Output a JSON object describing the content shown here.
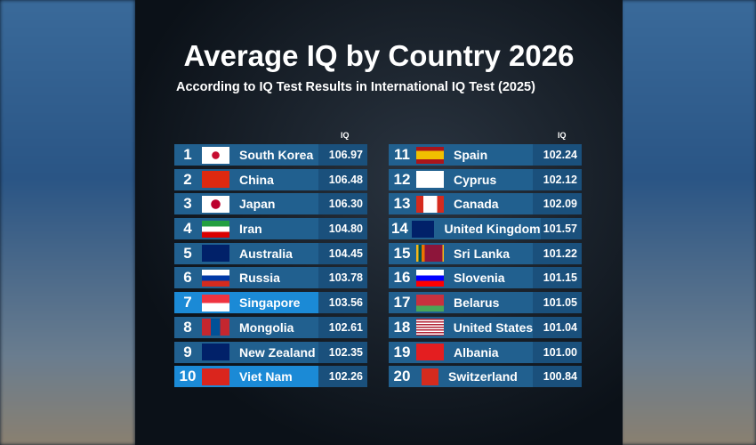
{
  "title": "Average IQ by Country 2026",
  "subtitle": "According to IQ Test Results in International IQ Test (2025)",
  "column_header": "IQ",
  "colors": {
    "row": "#21608f",
    "highlight": "#1b8ad6",
    "value_cell": "#1a507c"
  },
  "rows": [
    {
      "rank": "1",
      "country": "South Korea",
      "iq": "106.97",
      "flag": "kr"
    },
    {
      "rank": "2",
      "country": "China",
      "iq": "106.48",
      "flag": "cn"
    },
    {
      "rank": "3",
      "country": "Japan",
      "iq": "106.30",
      "flag": "jp"
    },
    {
      "rank": "4",
      "country": "Iran",
      "iq": "104.80",
      "flag": "ir"
    },
    {
      "rank": "5",
      "country": "Australia",
      "iq": "104.45",
      "flag": "au"
    },
    {
      "rank": "6",
      "country": "Russia",
      "iq": "103.78",
      "flag": "ru"
    },
    {
      "rank": "7",
      "country": "Singapore",
      "iq": "103.56",
      "flag": "sg",
      "highlight": true
    },
    {
      "rank": "8",
      "country": "Mongolia",
      "iq": "102.61",
      "flag": "mn"
    },
    {
      "rank": "9",
      "country": "New Zealand",
      "iq": "102.35",
      "flag": "nz"
    },
    {
      "rank": "10",
      "country": "Viet Nam",
      "iq": "102.26",
      "flag": "vn",
      "highlight": true
    },
    {
      "rank": "11",
      "country": "Spain",
      "iq": "102.24",
      "flag": "es"
    },
    {
      "rank": "12",
      "country": "Cyprus",
      "iq": "102.12",
      "flag": "cy"
    },
    {
      "rank": "13",
      "country": "Canada",
      "iq": "102.09",
      "flag": "ca"
    },
    {
      "rank": "14",
      "country": "United Kingdom",
      "iq": "101.57",
      "flag": "gb"
    },
    {
      "rank": "15",
      "country": "Sri Lanka",
      "iq": "101.22",
      "flag": "lk"
    },
    {
      "rank": "16",
      "country": "Slovenia",
      "iq": "101.15",
      "flag": "si"
    },
    {
      "rank": "17",
      "country": "Belarus",
      "iq": "101.05",
      "flag": "by"
    },
    {
      "rank": "18",
      "country": "United States",
      "iq": "101.04",
      "flag": "us"
    },
    {
      "rank": "19",
      "country": "Albania",
      "iq": "101.00",
      "flag": "al"
    },
    {
      "rank": "20",
      "country": "Switzerland",
      "iq": "100.84",
      "flag": "ch"
    }
  ]
}
